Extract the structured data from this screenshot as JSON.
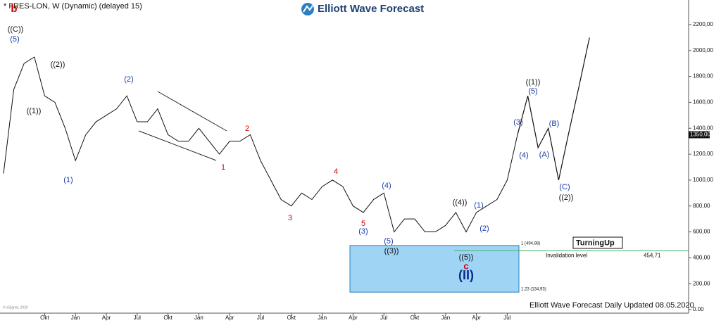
{
  "chart_data": {
    "type": "line",
    "title": "* FRES-LON, W (Dynamic) (delayed 15)",
    "brand": "Elliott Wave Forecast",
    "footer": "Elliott Wave Forecast Daily Updated 08.05.2020",
    "badge": "TurningUp",
    "copyright": "© eSignal, 2020",
    "categories": [
      null,
      null,
      null,
      null,
      "Okt",
      null,
      null,
      "Jan",
      null,
      null,
      "Apr",
      null,
      null,
      "Jul",
      null,
      null,
      "Okt",
      null,
      null,
      "Jan",
      null,
      null,
      "Apr",
      null,
      null,
      "Jul",
      null,
      null,
      "Okt",
      null,
      null,
      "Jan",
      null,
      null,
      "Apr",
      null,
      null,
      "Jul",
      null,
      null,
      "Okt",
      null,
      null,
      "Jan",
      null,
      null,
      "Apr",
      null,
      null,
      "Jul",
      null,
      null,
      null,
      null,
      null,
      null,
      null,
      null
    ],
    "series": [
      {
        "name": "FRES-LON",
        "color": "#111111",
        "values": [
          1050,
          1700,
          1900,
          1950,
          1650,
          1600,
          1400,
          1150,
          1350,
          1450,
          1500,
          1550,
          1650,
          1450,
          1450,
          1550,
          1350,
          1300,
          1300,
          1400,
          1300,
          1200,
          1300,
          1300,
          1350,
          1150,
          1000,
          850,
          800,
          900,
          850,
          950,
          1000,
          950,
          800,
          750,
          850,
          900,
          600,
          700,
          700,
          600,
          600,
          650,
          750,
          600,
          750,
          800,
          850,
          1000,
          1350,
          null,
          null,
          null,
          null,
          null,
          null,
          null
        ]
      },
      {
        "name": "Forecast",
        "color": "#111111",
        "values": [
          null,
          null,
          null,
          null,
          null,
          null,
          null,
          null,
          null,
          null,
          null,
          null,
          null,
          null,
          null,
          null,
          null,
          null,
          null,
          null,
          null,
          null,
          null,
          null,
          null,
          null,
          null,
          null,
          null,
          null,
          null,
          null,
          null,
          null,
          null,
          null,
          null,
          null,
          null,
          null,
          null,
          null,
          null,
          null,
          null,
          null,
          null,
          null,
          null,
          null,
          1350,
          1650,
          1250,
          1400,
          1000,
          1370,
          1730,
          2100
        ]
      }
    ],
    "ylim": [
      0,
      2390
    ],
    "yticks": [
      {
        "value": 0,
        "label": "0.00"
      },
      {
        "value": 200,
        "label": "200,00"
      },
      {
        "value": 400,
        "label": "400,00"
      },
      {
        "value": 600,
        "label": "600,00"
      },
      {
        "value": 800,
        "label": "800,00"
      },
      {
        "value": 1000,
        "label": "1000,00"
      },
      {
        "value": 1200,
        "label": "1200,00"
      },
      {
        "value": 1400,
        "label": "1400,00"
      },
      {
        "value": 1600,
        "label": "1600,00"
      },
      {
        "value": 1800,
        "label": "1800,00"
      },
      {
        "value": 2000,
        "label": "2000,00"
      },
      {
        "value": 2200,
        "label": "2200,00"
      }
    ],
    "current_price": {
      "value": 1350,
      "label": "1350,00"
    },
    "invalidation": {
      "value": 454.71,
      "label": "454,71",
      "text": "Invalidation level"
    },
    "zone": {
      "high": {
        "value": 494.98,
        "label": "1 (494,98)"
      },
      "low": {
        "value": 134.93,
        "label": "1.23 (134,93)"
      }
    },
    "annotations": [
      "b",
      "((C))",
      "(5)",
      "((1))",
      "((2))",
      "(1)",
      "(2)",
      "1",
      "2",
      "3",
      "4",
      "5",
      "(3)",
      "(4)",
      "(5)",
      "((3))",
      "((4))",
      "(1)",
      "(2)",
      "((5))",
      "c",
      "(II)",
      "(3)",
      "(4)",
      "(5)",
      "((1))",
      "(A)",
      "(B)",
      "(C)",
      "((2))"
    ]
  }
}
